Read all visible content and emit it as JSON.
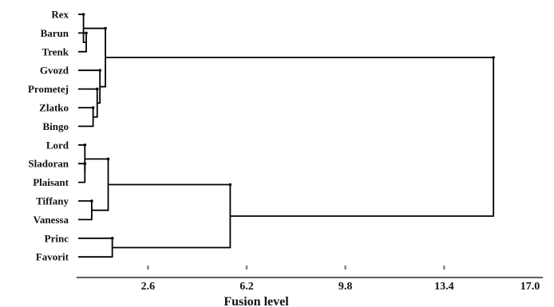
{
  "chart_data": {
    "type": "dendrogram",
    "orientation": "horizontal",
    "xlabel": "Fusion level",
    "xlim": [
      0,
      17.0
    ],
    "x_ticks": [
      {
        "value": 2.6,
        "label": "2.6"
      },
      {
        "value": 6.2,
        "label": "6.2"
      },
      {
        "value": 9.8,
        "label": "9.8"
      },
      {
        "value": 13.4,
        "label": "13.4"
      },
      {
        "value": 17.0,
        "label": "17.0"
      }
    ],
    "leaves": [
      "Rex",
      "Barun",
      "Trenk",
      "Gvozd",
      "Prometej",
      "Zlatko",
      "Bingo",
      "Lord",
      "Sladoran",
      "Plaisant",
      "Tiffany",
      "Vanessa",
      "Princ",
      "Favorit"
    ],
    "merges": [
      {
        "id": "m1",
        "left": "Barun",
        "right": "Trenk",
        "height": 0.35
      },
      {
        "id": "m2",
        "left": "Rex",
        "right": "m1",
        "height": 0.25
      },
      {
        "id": "m3",
        "left": "Zlatko",
        "right": "Bingo",
        "height": 0.6
      },
      {
        "id": "m4",
        "left": "Prometej",
        "right": "m3",
        "height": 0.75
      },
      {
        "id": "m5",
        "left": "Gvozd",
        "right": "m4",
        "height": 0.85
      },
      {
        "id": "m6",
        "left": "m2",
        "right": "m5",
        "height": 1.05
      },
      {
        "id": "m7",
        "left": "Sladoran",
        "right": "Plaisant",
        "height": 0.3
      },
      {
        "id": "m8",
        "left": "Lord",
        "right": "m7",
        "height": 0.3
      },
      {
        "id": "m9",
        "left": "Tiffany",
        "right": "Vanessa",
        "height": 0.55
      },
      {
        "id": "m10",
        "left": "m8",
        "right": "m9",
        "height": 1.15
      },
      {
        "id": "m11",
        "left": "Princ",
        "right": "Favorit",
        "height": 1.3
      },
      {
        "id": "m12",
        "left": "m10",
        "right": "m11",
        "height": 5.6
      },
      {
        "id": "m13",
        "left": "m6",
        "right": "m12",
        "height": 15.2
      }
    ]
  }
}
